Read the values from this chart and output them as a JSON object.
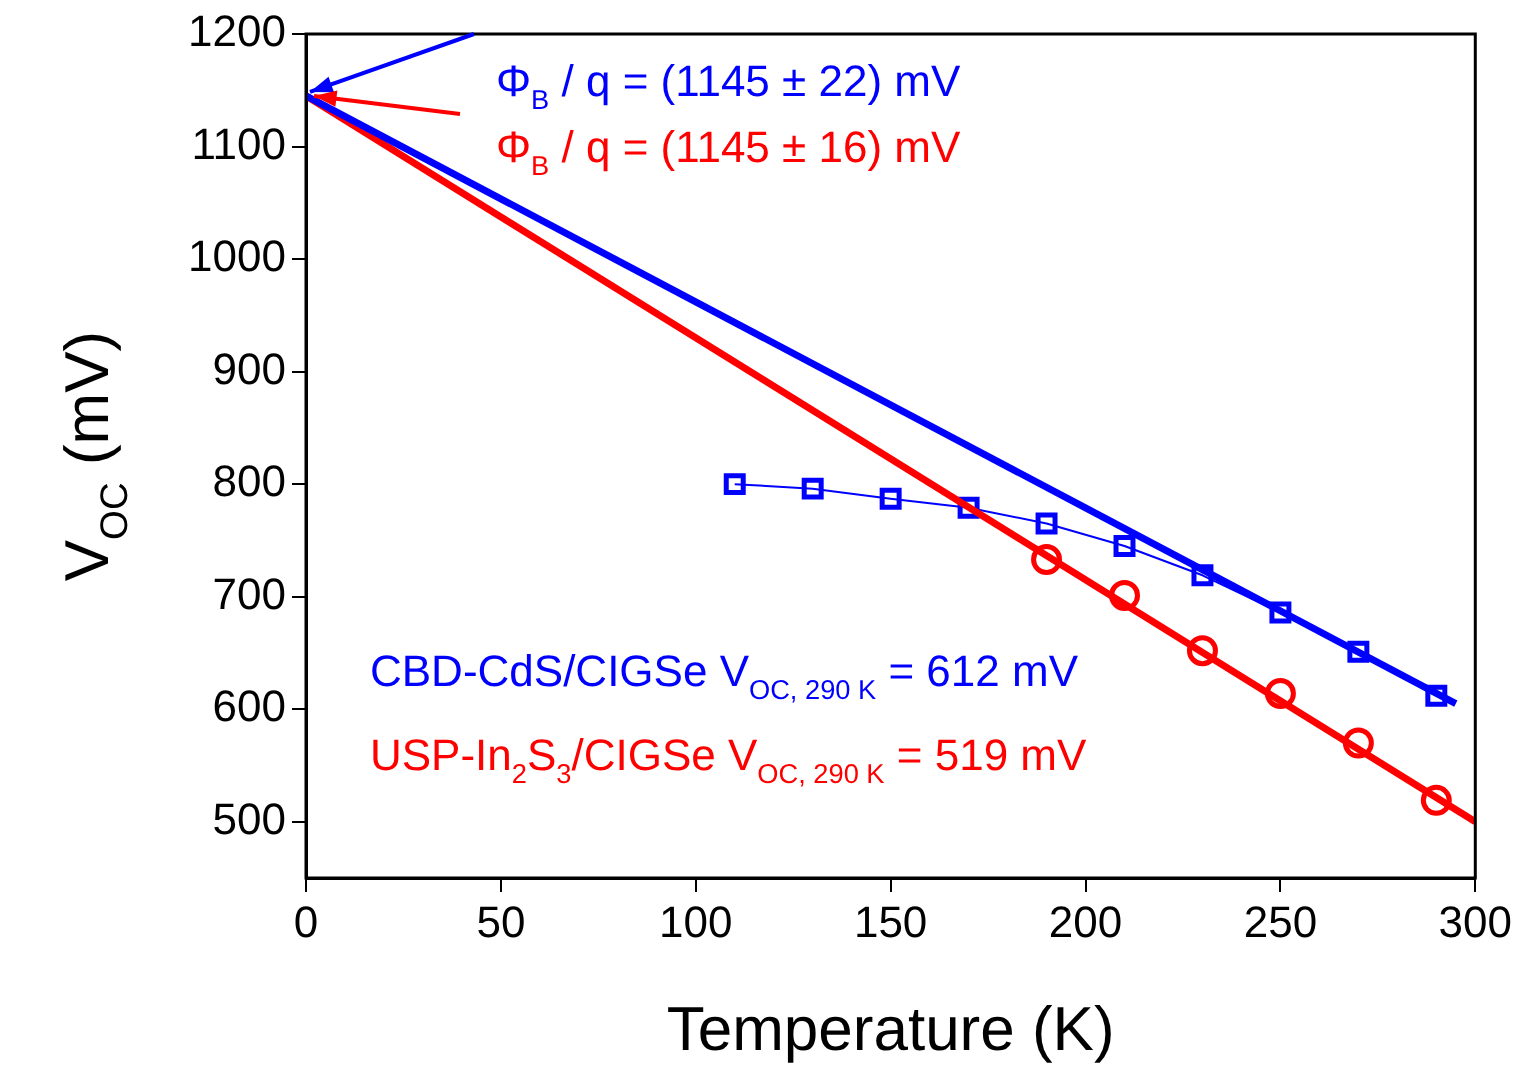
{
  "chart_data": {
    "type": "line",
    "xlabel": "Temperature (K)",
    "ylabel": "V$_{OC}$ (mV)",
    "xlim": [
      0,
      300
    ],
    "ylim": [
      450,
      1200
    ],
    "xticks": [
      0,
      50,
      100,
      150,
      200,
      250,
      300
    ],
    "yticks": [
      500,
      600,
      700,
      800,
      900,
      1000,
      1100,
      1200
    ],
    "grid": false,
    "legend": false,
    "series": [
      {
        "marker": "none",
        "color": "#0000ff",
        "x": [
          0,
          295
        ],
        "values": [
          1145,
          605
        ]
      },
      {
        "marker": "none",
        "color": "#ff0000",
        "x": [
          0,
          300
        ],
        "values": [
          1145,
          500
        ]
      },
      {
        "marker": "square",
        "color": "#0000ff",
        "x": [
          110,
          130,
          150,
          170,
          190,
          210,
          230,
          250,
          270,
          290
        ],
        "values": [
          800,
          796,
          787,
          779,
          765,
          745,
          719,
          686,
          651,
          612
        ]
      },
      {
        "type": "scatter",
        "marker": "circle",
        "color": "#ff0000",
        "x": [
          190,
          210,
          230,
          250,
          270,
          290
        ],
        "values": [
          733,
          701,
          652,
          614,
          570,
          519
        ]
      }
    ],
    "annotations": [
      {
        "text": "Φ$_{B}$ / q = (1145 ± 22) mV",
        "x": 0,
        "y": 1145
      },
      {
        "text": "Φ$_{B}$ / q = (1145 ± 16) mV",
        "x": 0,
        "y": 1145
      },
      "CBD-CdS/CIGSe V$_{OC, 290 K}$ = 612 mV",
      "USP-In$_{2}$S$_{3}$/CIGSe V$_{OC, 290 K}$ = 519 mV"
    ]
  }
}
